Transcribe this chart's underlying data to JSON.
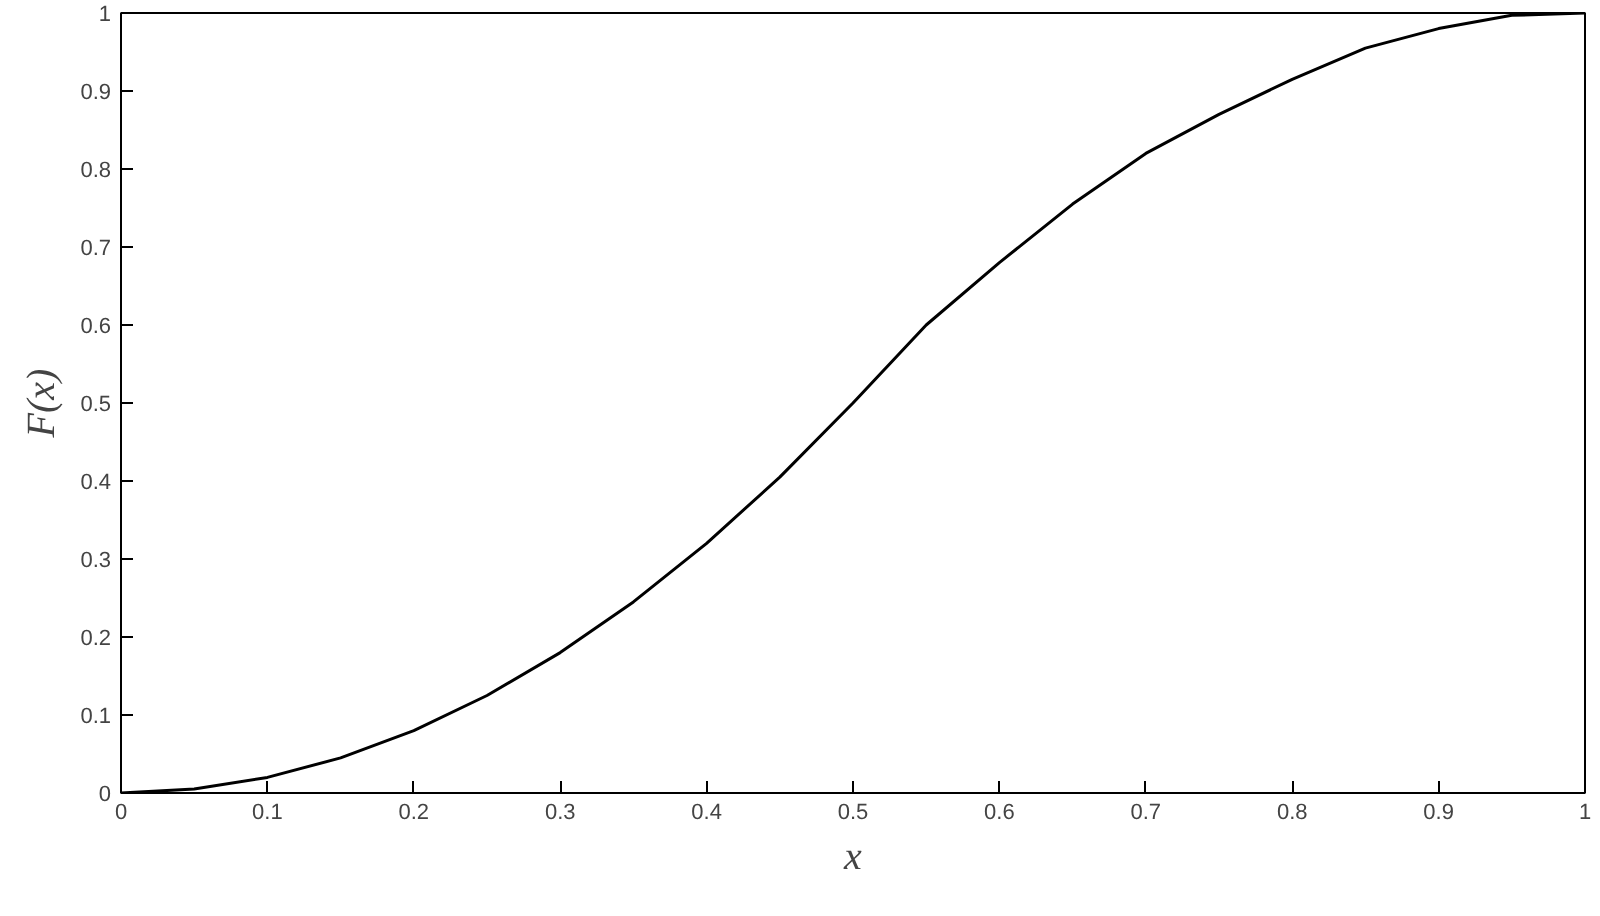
{
  "chart_data": {
    "type": "line",
    "xlabel": "x",
    "ylabel": "F(x)",
    "x": [
      0,
      0.05,
      0.1,
      0.15,
      0.2,
      0.25,
      0.3,
      0.35,
      0.4,
      0.45,
      0.5,
      0.55,
      0.6,
      0.65,
      0.7,
      0.75,
      0.8,
      0.85,
      0.9,
      0.95,
      1
    ],
    "series": [
      {
        "color": "#000000",
        "values": [
          0,
          0.005,
          0.02,
          0.045,
          0.08,
          0.125,
          0.18,
          0.245,
          0.32,
          0.405,
          0.5,
          0.6,
          0.68,
          0.755,
          0.82,
          0.87,
          0.915,
          0.955,
          0.98,
          0.997,
          1
        ]
      }
    ],
    "xlim": [
      0,
      1
    ],
    "ylim": [
      0,
      1
    ],
    "xticks": [
      0,
      0.1,
      0.2,
      0.3,
      0.4,
      0.5,
      0.6,
      0.7,
      0.8,
      0.9,
      1
    ],
    "yticks": [
      0,
      0.1,
      0.2,
      0.3,
      0.4,
      0.5,
      0.6,
      0.7,
      0.8,
      0.9,
      1
    ],
    "grid": false,
    "marker": "none",
    "line_style": "solid"
  }
}
